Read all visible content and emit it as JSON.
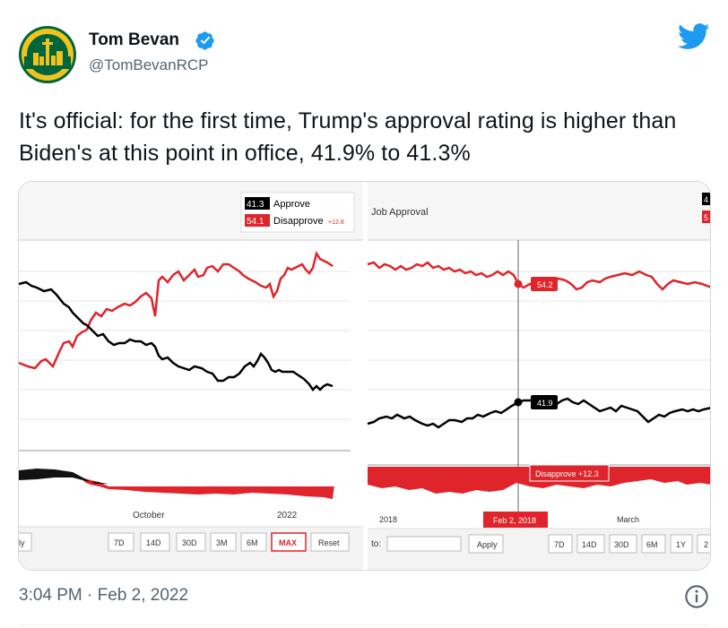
{
  "tweet": {
    "author_name": "Tom Bevan",
    "author_handle": "@TomBevanRCP",
    "text": "It's official: for the first time, Trump's approval rating is higher than Biden's at this point in office, 41.9% to 41.3%",
    "timestamp": "3:04 PM · Feb 2, 2022",
    "icons": {
      "verified": "verified-badge-icon",
      "brand": "twitter-bird-icon",
      "info": "info-icon"
    },
    "colors": {
      "verified": "#1d9bf0",
      "brand": "#1d9bf0",
      "text": "#0f1419",
      "muted": "#536471"
    }
  },
  "left_chart": {
    "legend": {
      "approve_value": "41.3",
      "approve_label": "Approve",
      "disapprove_value": "54.1",
      "disapprove_label": "Disapprove",
      "spread": "+12.8"
    },
    "x_labels": [
      "October",
      "2022"
    ],
    "buttons": [
      "7D",
      "14D",
      "30D",
      "3M",
      "6M",
      "MAX",
      "Reset"
    ],
    "active_button": "MAX",
    "partial_button": "ly",
    "colors": {
      "approve": "#000000",
      "disapprove": "#ff0000"
    }
  },
  "right_chart": {
    "title": "Job Approval",
    "disapprove_callout": "54.2",
    "approve_callout": "41.9",
    "spread_callout": "Disapprove +12.3",
    "date_callout": "Feb 2, 2018",
    "x_labels": [
      "2018",
      "March"
    ],
    "to_label": "to:",
    "apply_label": "Apply",
    "buttons": [
      "7D",
      "14D",
      "30D",
      "6M",
      "1Y",
      "2"
    ],
    "edge_approve": "4",
    "edge_disapprove": "5"
  }
}
